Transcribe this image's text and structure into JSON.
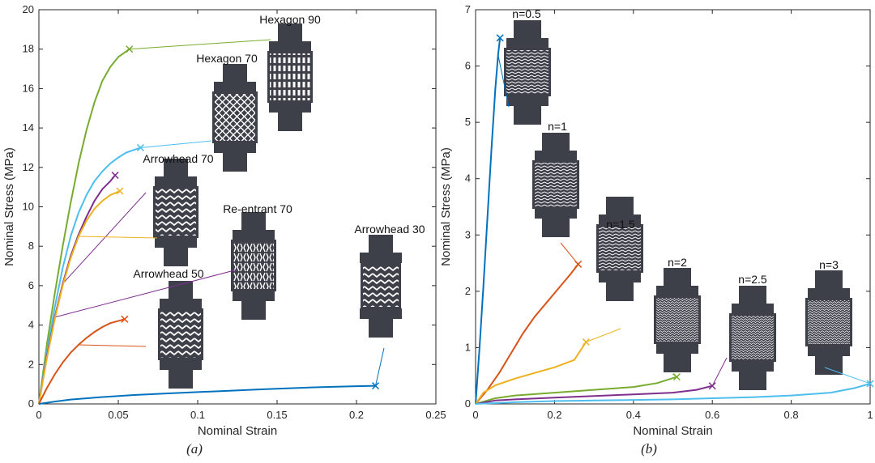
{
  "chart_data": [
    {
      "type": "line",
      "caption": "(a)",
      "xlabel": "Nominal Strain",
      "ylabel": "Nominal Stress (MPa)",
      "xlim": [
        0,
        0.25
      ],
      "ylim": [
        0,
        20
      ],
      "xticks": [
        "0",
        "0.05",
        "0.1",
        "0.15",
        "0.2",
        "0.25"
      ],
      "yticks": [
        "0",
        "2",
        "4",
        "6",
        "8",
        "10",
        "12",
        "14",
        "16",
        "18",
        "20"
      ],
      "grid": false,
      "series": [
        {
          "name": "Hexagon 90",
          "color": "#77ac30",
          "points": [
            [
              0,
              0
            ],
            [
              0.005,
              3.0
            ],
            [
              0.01,
              5.6
            ],
            [
              0.015,
              8.0
            ],
            [
              0.02,
              10.2
            ],
            [
              0.025,
              12.2
            ],
            [
              0.03,
              13.9
            ],
            [
              0.035,
              15.3
            ],
            [
              0.04,
              16.4
            ],
            [
              0.045,
              17.1
            ],
            [
              0.05,
              17.6
            ],
            [
              0.057,
              18.0
            ]
          ]
        },
        {
          "name": "Hexagon 70",
          "color": "#4dbeee",
          "points": [
            [
              0,
              0
            ],
            [
              0.005,
              2.6
            ],
            [
              0.01,
              4.9
            ],
            [
              0.015,
              6.9
            ],
            [
              0.02,
              8.5
            ],
            [
              0.025,
              9.7
            ],
            [
              0.03,
              10.6
            ],
            [
              0.035,
              11.3
            ],
            [
              0.04,
              11.8
            ],
            [
              0.045,
              12.2
            ],
            [
              0.05,
              12.5
            ],
            [
              0.055,
              12.75
            ],
            [
              0.064,
              13.0
            ]
          ]
        },
        {
          "name": "Arrowhead 70",
          "color": "#7e2f8e",
          "points": [
            [
              0,
              0
            ],
            [
              0.005,
              2.4
            ],
            [
              0.01,
              4.4
            ],
            [
              0.015,
              6.1
            ],
            [
              0.02,
              7.5
            ],
            [
              0.025,
              8.6
            ],
            [
              0.03,
              9.5
            ],
            [
              0.035,
              10.3
            ],
            [
              0.04,
              10.9
            ],
            [
              0.045,
              11.3
            ],
            [
              0.048,
              11.6
            ]
          ]
        },
        {
          "name": "Re-entrant 70",
          "color": "#edb120",
          "points": [
            [
              0,
              0
            ],
            [
              0.005,
              2.3
            ],
            [
              0.01,
              4.3
            ],
            [
              0.015,
              6.0
            ],
            [
              0.02,
              7.4
            ],
            [
              0.025,
              8.5
            ],
            [
              0.03,
              9.3
            ],
            [
              0.035,
              9.9
            ],
            [
              0.04,
              10.3
            ],
            [
              0.045,
              10.6
            ],
            [
              0.051,
              10.8
            ]
          ]
        },
        {
          "name": "Arrowhead 50",
          "color": "#d95319",
          "points": [
            [
              0,
              0
            ],
            [
              0.005,
              0.8
            ],
            [
              0.01,
              1.5
            ],
            [
              0.015,
              2.1
            ],
            [
              0.02,
              2.6
            ],
            [
              0.025,
              3.0
            ],
            [
              0.03,
              3.35
            ],
            [
              0.035,
              3.65
            ],
            [
              0.04,
              3.9
            ],
            [
              0.045,
              4.1
            ],
            [
              0.054,
              4.3
            ]
          ]
        },
        {
          "name": "Arrowhead 30",
          "color": "#0072bd",
          "points": [
            [
              0,
              0
            ],
            [
              0.01,
              0.12
            ],
            [
              0.02,
              0.22
            ],
            [
              0.04,
              0.35
            ],
            [
              0.06,
              0.45
            ],
            [
              0.08,
              0.53
            ],
            [
              0.1,
              0.6
            ],
            [
              0.12,
              0.67
            ],
            [
              0.14,
              0.74
            ],
            [
              0.16,
              0.8
            ],
            [
              0.18,
              0.86
            ],
            [
              0.2,
              0.9
            ],
            [
              0.212,
              0.92
            ]
          ]
        }
      ],
      "annotations": [
        {
          "text": "Hexagon 90",
          "series": 0
        },
        {
          "text": "Hexagon 70",
          "series": 1
        },
        {
          "text": "Arrowhead 70",
          "series": 2
        },
        {
          "text": "Re-entrant 70",
          "series": 3
        },
        {
          "text": "Arrowhead 50",
          "series": 4
        },
        {
          "text": "Arrowhead 30",
          "series": 5
        }
      ]
    },
    {
      "type": "line",
      "caption": "(b)",
      "xlabel": "Nominal Strain",
      "ylabel": "Nominal Stress (MPa)",
      "xlim": [
        0,
        1
      ],
      "ylim": [
        0,
        7
      ],
      "xticks": [
        "0",
        "0.2",
        "0.4",
        "0.6",
        "0.8",
        "1"
      ],
      "yticks": [
        "0",
        "1",
        "2",
        "3",
        "4",
        "5",
        "6",
        "7"
      ],
      "grid": false,
      "series": [
        {
          "name": "n=0.5",
          "color": "#0072bd",
          "points": [
            [
              0,
              0
            ],
            [
              0.01,
              1.0
            ],
            [
              0.02,
              2.1
            ],
            [
              0.03,
              3.3
            ],
            [
              0.04,
              4.5
            ],
            [
              0.05,
              5.6
            ],
            [
              0.057,
              6.2
            ],
            [
              0.062,
              6.5
            ]
          ]
        },
        {
          "name": "n=1",
          "color": "#d95319",
          "points": [
            [
              0,
              0
            ],
            [
              0.03,
              0.25
            ],
            [
              0.06,
              0.55
            ],
            [
              0.09,
              0.9
            ],
            [
              0.12,
              1.25
            ],
            [
              0.15,
              1.55
            ],
            [
              0.18,
              1.8
            ],
            [
              0.21,
              2.05
            ],
            [
              0.24,
              2.3
            ],
            [
              0.26,
              2.48
            ]
          ]
        },
        {
          "name": "n=1.5",
          "color": "#edb120",
          "points": [
            [
              0,
              0
            ],
            [
              0.02,
              0.2
            ],
            [
              0.05,
              0.33
            ],
            [
              0.1,
              0.45
            ],
            [
              0.15,
              0.55
            ],
            [
              0.2,
              0.65
            ],
            [
              0.25,
              0.78
            ],
            [
              0.28,
              1.1
            ]
          ]
        },
        {
          "name": "n=2",
          "color": "#77ac30",
          "points": [
            [
              0,
              0
            ],
            [
              0.05,
              0.1
            ],
            [
              0.1,
              0.15
            ],
            [
              0.2,
              0.2
            ],
            [
              0.3,
              0.25
            ],
            [
              0.4,
              0.3
            ],
            [
              0.46,
              0.37
            ],
            [
              0.51,
              0.48
            ]
          ]
        },
        {
          "name": "n=2.5",
          "color": "#7e2f8e",
          "points": [
            [
              0,
              0
            ],
            [
              0.05,
              0.06
            ],
            [
              0.1,
              0.08
            ],
            [
              0.2,
              0.11
            ],
            [
              0.3,
              0.14
            ],
            [
              0.4,
              0.17
            ],
            [
              0.5,
              0.2
            ],
            [
              0.56,
              0.25
            ],
            [
              0.6,
              0.32
            ]
          ]
        },
        {
          "name": "n=3",
          "color": "#4dbeee",
          "points": [
            [
              0,
              0
            ],
            [
              0.1,
              0.03
            ],
            [
              0.2,
              0.05
            ],
            [
              0.3,
              0.06
            ],
            [
              0.4,
              0.07
            ],
            [
              0.5,
              0.08
            ],
            [
              0.6,
              0.1
            ],
            [
              0.7,
              0.12
            ],
            [
              0.8,
              0.15
            ],
            [
              0.9,
              0.2
            ],
            [
              0.96,
              0.28
            ],
            [
              1.0,
              0.36
            ]
          ]
        }
      ],
      "annotations": [
        {
          "text": "n=0.5",
          "series": 0
        },
        {
          "text": "n=1",
          "series": 1
        },
        {
          "text": "n=1.5",
          "series": 2
        },
        {
          "text": "n=2",
          "series": 3
        },
        {
          "text": "n=2.5",
          "series": 4
        },
        {
          "text": "n=3",
          "series": 5
        }
      ]
    }
  ]
}
